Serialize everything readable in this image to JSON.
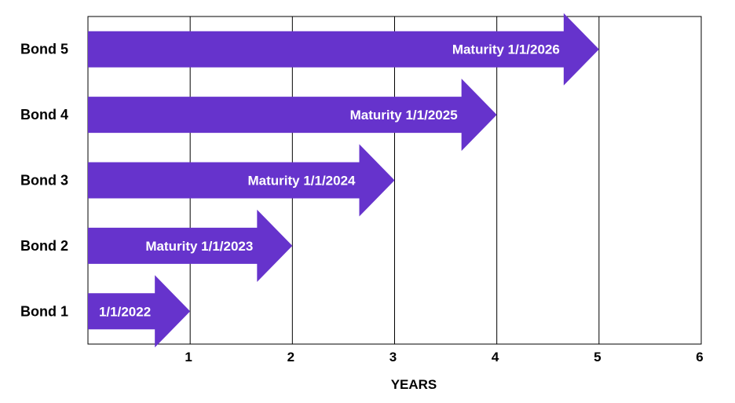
{
  "chart_data": {
    "type": "bar",
    "categories": [
      "Bond 1",
      "Bond 2",
      "Bond 3",
      "Bond 4",
      "Bond 5"
    ],
    "values": [
      1,
      2,
      3,
      4,
      5
    ],
    "bar_labels": [
      "1/1/2022",
      "Maturity 1/1/2023",
      "Maturity 1/1/2024",
      "Maturity 1/1/2025",
      "Maturity 1/1/2026"
    ],
    "x_ticks": [
      1,
      2,
      3,
      4,
      5,
      6
    ],
    "xlim": [
      0,
      6
    ],
    "xlabel": "YEARS",
    "grid": "vertical",
    "bar_color": "#6633cc"
  }
}
